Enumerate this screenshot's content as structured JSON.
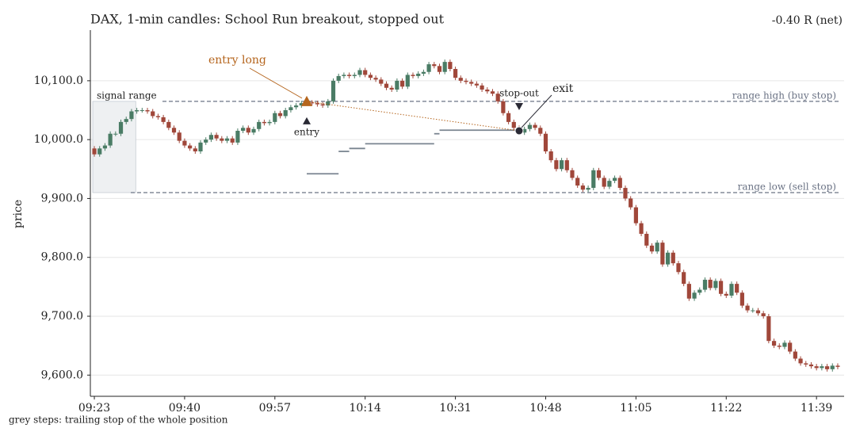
{
  "chart_data": {
    "type": "candlestick",
    "title": "DAX, 1-min candles: School Run breakout, stopped out",
    "result": "-0.40 R (net)",
    "ylabel": "price",
    "footnote": "grey steps: trailing stop of the whole position",
    "up_color": "#4a7c65",
    "down_color": "#a0473a",
    "grid": true,
    "xlim": [
      -0.75,
      141.2
    ],
    "ylim": [
      9564,
      10186
    ],
    "xticks": [
      {
        "value": 0,
        "label": "09:23"
      },
      {
        "value": 17,
        "label": "09:40"
      },
      {
        "value": 34,
        "label": "09:57"
      },
      {
        "value": 51,
        "label": "10:14"
      },
      {
        "value": 68,
        "label": "10:31"
      },
      {
        "value": 85,
        "label": "10:48"
      },
      {
        "value": 102,
        "label": "11:05"
      },
      {
        "value": 119,
        "label": "11:22"
      },
      {
        "value": 136,
        "label": "11:39"
      }
    ],
    "yticks": [
      {
        "value": 9600,
        "label": "9,600.0"
      },
      {
        "value": 9700,
        "label": "9,700.0"
      },
      {
        "value": 9800,
        "label": "9,800.0"
      },
      {
        "value": 9900,
        "label": "9,900.0"
      },
      {
        "value": 10000,
        "label": "10,000.0"
      },
      {
        "value": 10100,
        "label": "10,100.0"
      }
    ],
    "x": [
      0,
      1,
      2,
      3,
      4,
      5,
      6,
      7,
      8,
      9,
      10,
      11,
      12,
      13,
      14,
      15,
      16,
      17,
      18,
      19,
      20,
      21,
      22,
      23,
      24,
      25,
      26,
      27,
      28,
      29,
      30,
      31,
      32,
      33,
      34,
      35,
      36,
      37,
      38,
      39,
      40,
      41,
      42,
      43,
      44,
      45,
      46,
      47,
      48,
      49,
      50,
      51,
      52,
      53,
      54,
      55,
      56,
      57,
      58,
      59,
      60,
      61,
      62,
      63,
      64,
      65,
      66,
      67,
      68,
      69,
      70,
      71,
      72,
      73,
      74,
      75,
      76,
      77,
      78,
      79,
      80,
      81,
      82,
      83,
      84,
      85,
      86,
      87,
      88,
      89,
      90,
      91,
      92,
      93,
      94,
      95,
      96,
      97,
      98,
      99,
      100,
      101,
      102,
      103,
      104,
      105,
      106,
      107,
      108,
      109,
      110,
      111,
      112,
      113,
      114,
      115,
      116,
      117,
      118,
      119,
      120,
      121,
      122,
      123,
      124,
      125,
      126,
      127,
      128,
      129,
      130,
      131,
      132,
      133,
      134,
      135,
      136,
      137,
      138,
      139,
      140
    ],
    "open": [
      9985,
      9975,
      9985,
      9990,
      10010,
      10010,
      10030,
      10035,
      10048,
      10050,
      10050,
      10048,
      10040,
      10038,
      10030,
      10020,
      10012,
      9998,
      9990,
      9985,
      9980,
      9995,
      10000,
      10008,
      10002,
      9998,
      10002,
      9995,
      10015,
      10020,
      10012,
      10018,
      10030,
      10028,
      10030,
      10045,
      10040,
      10050,
      10055,
      10058,
      10062,
      10063,
      10062,
      10060,
      10058,
      10065,
      10100,
      10108,
      10110,
      10108,
      10110,
      10118,
      10110,
      10105,
      10102,
      10095,
      10088,
      10085,
      10100,
      10090,
      10110,
      10108,
      10112,
      10115,
      10128,
      10125,
      10115,
      10132,
      10120,
      10105,
      10100,
      10098,
      10095,
      10092,
      10085,
      10082,
      10078,
      10065,
      10045,
      10030,
      10020,
      10012,
      10018,
      10025,
      10020,
      10010,
      9980,
      9965,
      9950,
      9965,
      9948,
      9935,
      9922,
      9915,
      9918,
      9948,
      9935,
      9920,
      9930,
      9935,
      9918,
      9900,
      9885,
      9858,
      9840,
      9820,
      9810,
      9825,
      9788,
      9808,
      9790,
      9775,
      9755,
      9730,
      9740,
      9745,
      9762,
      9748,
      9760,
      9738,
      9735,
      9755,
      9740,
      9718,
      9710,
      9710,
      9705,
      9700,
      9658,
      9650,
      9648,
      9655,
      9640,
      9628,
      9620,
      9618,
      9615,
      9612,
      9615,
      9610,
      9616
    ],
    "high": [
      9989,
      9989,
      9994,
      10014,
      10014,
      10034,
      10039,
      10052,
      10054,
      10054,
      10054,
      10052,
      10044,
      10042,
      10034,
      10024,
      10016,
      10002,
      9994,
      9989,
      9999,
      10004,
      10012,
      10012,
      10006,
      10006,
      10006,
      10019,
      10024,
      10024,
      10022,
      10034,
      10034,
      10034,
      10049,
      10049,
      10054,
      10059,
      10062,
      10066,
      10067,
      10067,
      10066,
      10064,
      10069,
      10104,
      10112,
      10114,
      10114,
      10114,
      10122,
      10122,
      10114,
      10109,
      10106,
      10099,
      10092,
      10104,
      10104,
      10114,
      10114,
      10116,
      10119,
      10132,
      10132,
      10129,
      10136,
      10136,
      10124,
      10109,
      10104,
      10102,
      10099,
      10096,
      10089,
      10086,
      10082,
      10069,
      10049,
      10034,
      10024,
      10022,
      10029,
      10029,
      10024,
      10014,
      9984,
      9969,
      9969,
      9969,
      9952,
      9939,
      9926,
      9922,
      9952,
      9952,
      9939,
      9934,
      9939,
      9939,
      9922,
      9904,
      9889,
      9862,
      9844,
      9824,
      9829,
      9829,
      9812,
      9812,
      9794,
      9779,
      9759,
      9744,
      9749,
      9766,
      9766,
      9764,
      9764,
      9742,
      9759,
      9759,
      9744,
      9722,
      9714,
      9714,
      9709,
      9704,
      9662,
      9654,
      9659,
      9659,
      9644,
      9632,
      9624,
      9622,
      9619,
      9619,
      9619,
      9620,
      9620
    ],
    "low": [
      9971,
      9971,
      9981,
      9986,
      10006,
      10006,
      10026,
      10031,
      10044,
      10046,
      10044,
      10036,
      10034,
      10026,
      10016,
      10008,
      9994,
      9986,
      9981,
      9976,
      9976,
      9991,
      9996,
      9998,
      9994,
      9994,
      9991,
      9991,
      10011,
      10008,
      10008,
      10014,
      10024,
      10024,
      10026,
      10036,
      10036,
      10046,
      10051,
      10054,
      10058,
      10058,
      10056,
      10054,
      10054,
      10061,
      10096,
      10104,
      10104,
      10104,
      10106,
      10106,
      10101,
      10098,
      10091,
      10084,
      10081,
      10081,
      10086,
      10086,
      10104,
      10104,
      10108,
      10111,
      10121,
      10111,
      10111,
      10116,
      10101,
      10096,
      10094,
      10091,
      10088,
      10081,
      10078,
      10074,
      10061,
      10041,
      10026,
      10016,
      10008,
      10008,
      10014,
      10016,
      10006,
      9976,
      9961,
      9946,
      9946,
      9944,
      9931,
      9918,
      9911,
      9911,
      9914,
      9931,
      9916,
      9916,
      9926,
      9914,
      9896,
      9881,
      9854,
      9836,
      9816,
      9806,
      9806,
      9784,
      9784,
      9786,
      9771,
      9751,
      9726,
      9726,
      9736,
      9741,
      9744,
      9744,
      9734,
      9731,
      9731,
      9736,
      9714,
      9706,
      9706,
      9701,
      9696,
      9654,
      9646,
      9644,
      9644,
      9636,
      9624,
      9616,
      9614,
      9611,
      9608,
      9608,
      9606,
      9606,
      9610
    ],
    "close": [
      9975,
      9985,
      9990,
      10010,
      10010,
      10030,
      10035,
      10048,
      10050,
      10050,
      10048,
      10040,
      10038,
      10030,
      10020,
      10012,
      9998,
      9990,
      9985,
      9980,
      9995,
      10000,
      10008,
      10002,
      9998,
      10002,
      9995,
      10015,
      10020,
      10012,
      10018,
      10030,
      10028,
      10030,
      10045,
      10040,
      10050,
      10055,
      10058,
      10062,
      10063,
      10062,
      10060,
      10058,
      10065,
      10100,
      10108,
      10110,
      10108,
      10110,
      10118,
      10110,
      10105,
      10102,
      10095,
      10088,
      10085,
      10100,
      10090,
      10110,
      10108,
      10112,
      10115,
      10128,
      10125,
      10115,
      10132,
      10120,
      10105,
      10100,
      10098,
      10095,
      10092,
      10085,
      10082,
      10078,
      10065,
      10045,
      10030,
      10020,
      10012,
      10018,
      10025,
      10020,
      10010,
      9980,
      9965,
      9950,
      9965,
      9948,
      9935,
      9922,
      9915,
      9918,
      9948,
      9935,
      9920,
      9930,
      9935,
      9918,
      9900,
      9885,
      9858,
      9840,
      9820,
      9810,
      9825,
      9788,
      9808,
      9790,
      9775,
      9755,
      9730,
      9740,
      9745,
      9762,
      9748,
      9760,
      9738,
      9735,
      9755,
      9740,
      9718,
      9710,
      9710,
      9705,
      9700,
      9658,
      9650,
      9648,
      9655,
      9640,
      9628,
      9620,
      9618,
      9615,
      9612,
      9615,
      9610,
      9616,
      9614
    ],
    "signal_range": {
      "label": "signal range",
      "x0": -0.3,
      "x1": 7.8,
      "low": 9910,
      "high": 10065
    },
    "levels": [
      {
        "label": "range high (buy stop)",
        "value": 10065
      },
      {
        "label": "range low (sell stop)",
        "value": 9910
      }
    ],
    "stop_steps": {
      "x0": [
        40,
        46,
        48,
        51,
        64,
        65
      ],
      "x1": [
        46,
        48,
        51,
        64,
        65,
        80
      ],
      "values": [
        9942,
        9980,
        9985,
        9993,
        10010,
        10016
      ]
    },
    "entry": {
      "x": 40,
      "value": 10065,
      "label": "entry long",
      "marker_label": "entry",
      "color": "#b5651d"
    },
    "exit": {
      "x": 80,
      "value": 10015,
      "label": "exit",
      "marker_label": "stop-out",
      "color": "#2a2a35"
    }
  }
}
